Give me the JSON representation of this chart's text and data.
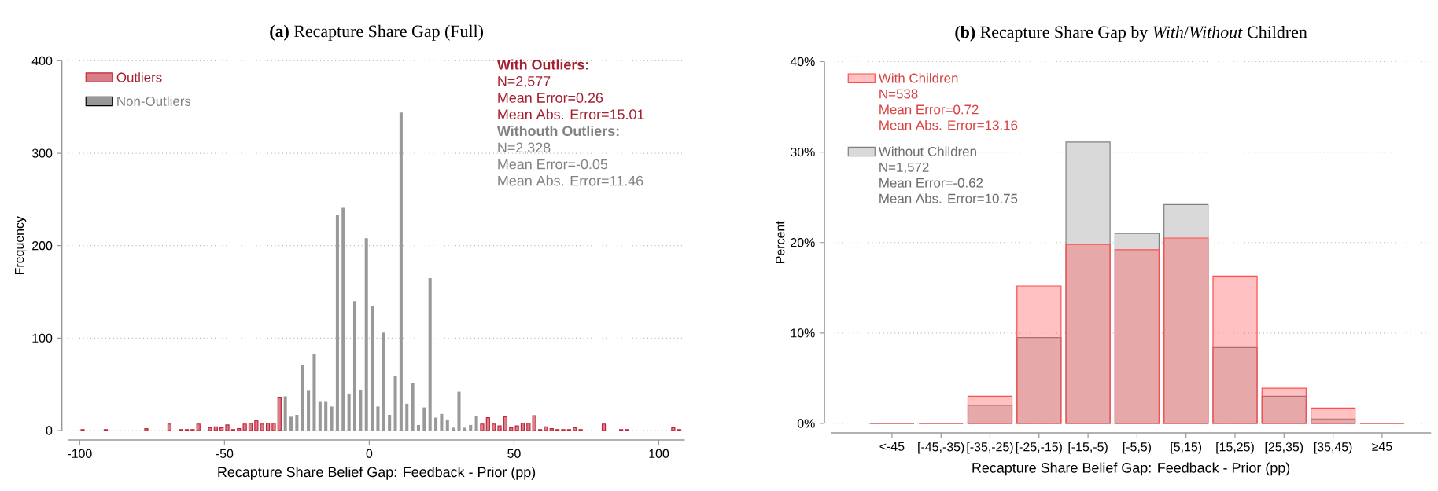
{
  "chart_data": [
    {
      "type": "bar",
      "title": "**(a)** Recapture Share Gap (Full)",
      "xlabel": "Recapture Share Belief Gap: Feedback - Prior (pp)",
      "ylabel": "Frequency",
      "xlim": [
        -104,
        109
      ],
      "xticks": [
        -100,
        -50,
        0,
        50,
        100
      ],
      "ylim": [
        0,
        400
      ],
      "yticks": [
        0,
        100,
        200,
        300,
        400
      ],
      "grid": "y",
      "legend": "top left",
      "series": [
        {
          "name": "Outliers",
          "color": "#c0263a",
          "x": [
            -99,
            -91,
            -77,
            -69,
            -65,
            -63,
            -61,
            -59,
            -55,
            -53,
            -51,
            -49,
            -47,
            -45,
            -43,
            -41,
            -39,
            -37,
            -35,
            -33,
            -31,
            39,
            41,
            43,
            45,
            47,
            49,
            51,
            53,
            55,
            57,
            59,
            61,
            63,
            65,
            67,
            69,
            71,
            73,
            81,
            87,
            89,
            105,
            107
          ],
          "values": [
            1,
            1,
            2,
            7,
            1,
            1,
            1,
            7,
            3,
            4,
            3,
            6,
            1,
            2,
            7,
            8,
            11,
            7,
            8,
            8,
            36,
            7,
            14,
            7,
            5,
            15,
            3,
            5,
            8,
            8,
            16,
            1,
            4,
            2,
            1,
            1,
            1,
            3,
            1,
            7,
            1,
            1,
            3,
            1
          ]
        },
        {
          "name": "Non-Outliers",
          "color": "#999999",
          "x": [
            -29,
            -27,
            -25,
            -23,
            -21,
            -19,
            -17,
            -15,
            -13,
            -11,
            -9,
            -7,
            -5,
            -3,
            -1,
            1,
            3,
            5,
            7,
            9,
            11,
            13,
            15,
            17,
            19,
            21,
            23,
            25,
            27,
            29,
            31,
            33,
            35,
            37
          ],
          "values": [
            37,
            15,
            17,
            71,
            43,
            83,
            31,
            31,
            26,
            233,
            241,
            40,
            140,
            44,
            208,
            135,
            26,
            106,
            17,
            59,
            344,
            29,
            51,
            6,
            25,
            165,
            14,
            18,
            12,
            3,
            42,
            3,
            6,
            16
          ]
        }
      ],
      "annotations": [
        "With Outliers:",
        "N=2,577",
        "Mean Error=0.26",
        "Mean Abs. Error=15.01",
        "Withouth Outliers:",
        "N=2,328",
        "Mean Error=-0.05",
        "Mean Abs. Error=11.46"
      ]
    },
    {
      "type": "bar",
      "title": "**(b)** Recapture Share Gap by *With*/*Without* Children",
      "xlabel": "Recapture Share Belief Gap: Feedback - Prior (pp)",
      "ylabel": "Percent",
      "categories": [
        "<-45",
        "[-45,-35)",
        "[-35,-25)",
        "[-25,-15)",
        "[-15,-5)",
        "[-5,5)",
        "[5,15)",
        "[15,25)",
        "[25,35)",
        "[35,45)",
        "≥45"
      ],
      "ylim": [
        0,
        40
      ],
      "yticks": [
        {
          "value": 0,
          "label": "0%"
        },
        {
          "value": 10,
          "label": "10%"
        },
        {
          "value": 20,
          "label": "20%"
        },
        {
          "value": 30,
          "label": "30%"
        },
        {
          "value": 40,
          "label": "40%"
        }
      ],
      "grid": "y",
      "legend": "top left",
      "series": [
        {
          "name": "With Children",
          "color": "#ff4d4d",
          "values": [
            0,
            0,
            3.0,
            15.2,
            19.8,
            19.2,
            20.5,
            16.3,
            3.9,
            1.7,
            0
          ]
        },
        {
          "name": "Without Children",
          "color": "#808080",
          "values": [
            0,
            0,
            2.0,
            9.5,
            31.1,
            21.0,
            24.2,
            8.4,
            3.0,
            0.5,
            0
          ]
        }
      ],
      "annotations": [
        "N=538",
        "Mean Error=0.72",
        "Mean Abs. Error=13.16",
        "N=1,572",
        "Mean Error=-0.62",
        "Mean Abs. Error=10.75"
      ]
    }
  ]
}
